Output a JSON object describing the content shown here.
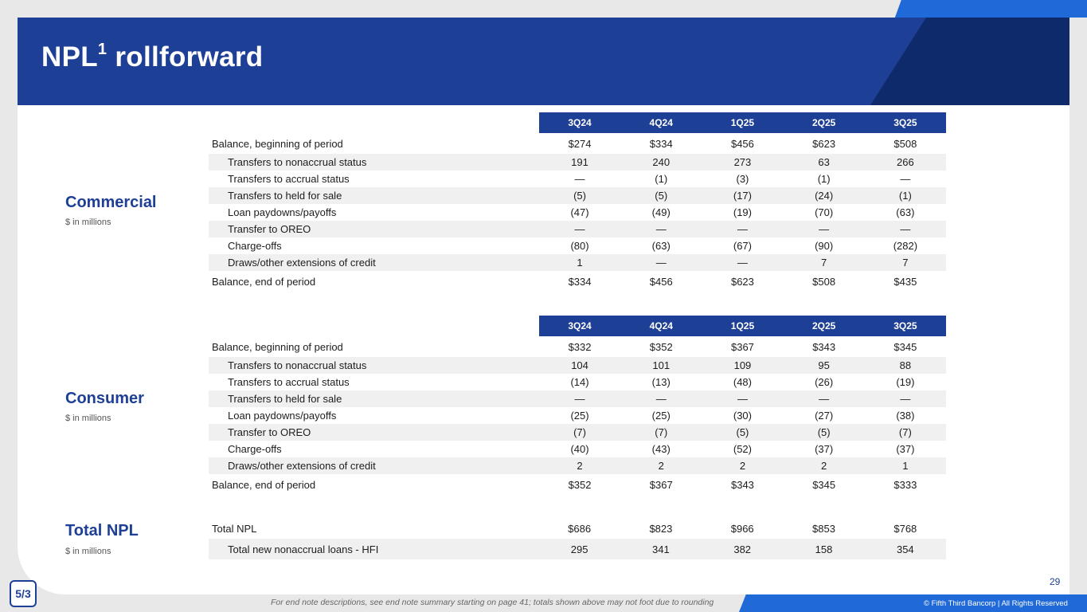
{
  "title": {
    "main": "NPL",
    "sup": "1",
    "rest": " rollforward"
  },
  "quarters": [
    "3Q24",
    "4Q24",
    "1Q25",
    "2Q25",
    "3Q25"
  ],
  "commercial": {
    "label": "Commercial",
    "sub": "$ in millions",
    "begin": {
      "label": "Balance, beginning of period",
      "values": [
        "$274",
        "$334",
        "$456",
        "$623",
        "$508"
      ]
    },
    "rows": [
      {
        "label": "Transfers to nonaccrual status",
        "values": [
          "191",
          "240",
          "273",
          "63",
          "266"
        ]
      },
      {
        "label": "Transfers to accrual status",
        "values": [
          "—",
          "(1)",
          "(3)",
          "(1)",
          "—"
        ]
      },
      {
        "label": "Transfers to held for sale",
        "values": [
          "(5)",
          "(5)",
          "(17)",
          "(24)",
          "(1)"
        ]
      },
      {
        "label": "Loan paydowns/payoffs",
        "values": [
          "(47)",
          "(49)",
          "(19)",
          "(70)",
          "(63)"
        ]
      },
      {
        "label": "Transfer to OREO",
        "values": [
          "—",
          "—",
          "—",
          "—",
          "—"
        ]
      },
      {
        "label": "Charge-offs",
        "values": [
          "(80)",
          "(63)",
          "(67)",
          "(90)",
          "(282)"
        ]
      },
      {
        "label": "Draws/other extensions of credit",
        "values": [
          "1",
          "—",
          "—",
          "7",
          "7"
        ]
      }
    ],
    "end": {
      "label": "Balance, end of period",
      "values": [
        "$334",
        "$456",
        "$623",
        "$508",
        "$435"
      ]
    }
  },
  "consumer": {
    "label": "Consumer",
    "sub": "$ in millions",
    "begin": {
      "label": "Balance, beginning of period",
      "values": [
        "$332",
        "$352",
        "$367",
        "$343",
        "$345"
      ]
    },
    "rows": [
      {
        "label": "Transfers to nonaccrual status",
        "values": [
          "104",
          "101",
          "109",
          "95",
          "88"
        ]
      },
      {
        "label": "Transfers to accrual status",
        "values": [
          "(14)",
          "(13)",
          "(48)",
          "(26)",
          "(19)"
        ]
      },
      {
        "label": "Transfers to held for sale",
        "values": [
          "—",
          "—",
          "—",
          "—",
          "—"
        ]
      },
      {
        "label": "Loan paydowns/payoffs",
        "values": [
          "(25)",
          "(25)",
          "(30)",
          "(27)",
          "(38)"
        ]
      },
      {
        "label": "Transfer to OREO",
        "values": [
          "(7)",
          "(7)",
          "(5)",
          "(5)",
          "(7)"
        ]
      },
      {
        "label": "Charge-offs",
        "values": [
          "(40)",
          "(43)",
          "(52)",
          "(37)",
          "(37)"
        ]
      },
      {
        "label": "Draws/other extensions of credit",
        "values": [
          "2",
          "2",
          "2",
          "2",
          "1"
        ]
      }
    ],
    "end": {
      "label": "Balance, end of period",
      "values": [
        "$352",
        "$367",
        "$343",
        "$345",
        "$333"
      ]
    }
  },
  "total": {
    "label": "Total NPL",
    "sub": "$ in millions",
    "rows": [
      {
        "label": "Total NPL",
        "values": [
          "$686",
          "$823",
          "$966",
          "$853",
          "$768"
        ]
      },
      {
        "label": "Total new nonaccrual loans - HFI",
        "values": [
          "295",
          "341",
          "382",
          "158",
          "354"
        ]
      }
    ]
  },
  "footer": {
    "page": "29",
    "logo": "5/3",
    "footnote": "For end note descriptions, see end note summary starting on page 41; totals shown above may not foot due to rounding",
    "copyright": "© Fifth Third Bancorp | All Rights Reserved"
  },
  "colors": {
    "primary": "#1e3f96",
    "dark": "#0f2a6b",
    "accent": "#1f6ad8",
    "shade": "#f0f0f0"
  }
}
